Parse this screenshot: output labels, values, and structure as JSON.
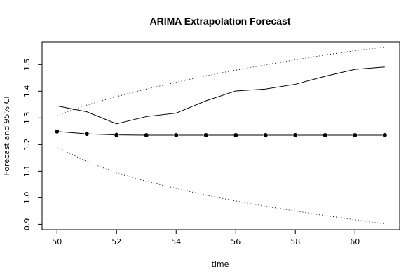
{
  "chart_data": {
    "type": "line",
    "title": "ARIMA Extrapolation Forecast",
    "xlabel": "time",
    "ylabel": "Forecast and 95% CI",
    "xlim": [
      49.5,
      61.5
    ],
    "ylim": [
      0.88,
      1.585
    ],
    "x_ticks": [
      50,
      52,
      54,
      56,
      58,
      60
    ],
    "y_ticks": [
      0.9,
      1.0,
      1.1,
      1.2,
      1.3,
      1.4,
      1.5
    ],
    "x_tick_labels": [
      "50",
      "52",
      "54",
      "56",
      "58",
      "60"
    ],
    "y_tick_labels": [
      "0.9",
      "1.0",
      "1.1",
      "1.2",
      "1.3",
      "1.4",
      "1.5"
    ],
    "grid": false,
    "x": [
      50,
      51,
      52,
      53,
      54,
      55,
      56,
      57,
      58,
      59,
      60,
      61
    ],
    "series": [
      {
        "values": [
          1.345,
          1.323,
          1.278,
          1.305,
          1.318,
          1.364,
          1.401,
          1.408,
          1.426,
          1.456,
          1.482,
          1.491
        ],
        "style": "solid",
        "color": "#000000"
      },
      {
        "values": [
          1.249,
          1.24,
          1.236,
          1.235,
          1.235,
          1.235,
          1.235,
          1.235,
          1.235,
          1.235,
          1.235,
          1.235
        ],
        "style": "solid-points",
        "color": "#000000"
      },
      {
        "values": [
          1.31,
          1.348,
          1.38,
          1.408,
          1.433,
          1.458,
          1.479,
          1.499,
          1.518,
          1.536,
          1.552,
          1.566
        ],
        "style": "dotted",
        "color": "#000000"
      },
      {
        "values": [
          1.19,
          1.136,
          1.093,
          1.062,
          1.035,
          1.01,
          0.988,
          0.968,
          0.95,
          0.933,
          0.917,
          0.902
        ],
        "style": "dotted",
        "color": "#000000"
      }
    ]
  }
}
